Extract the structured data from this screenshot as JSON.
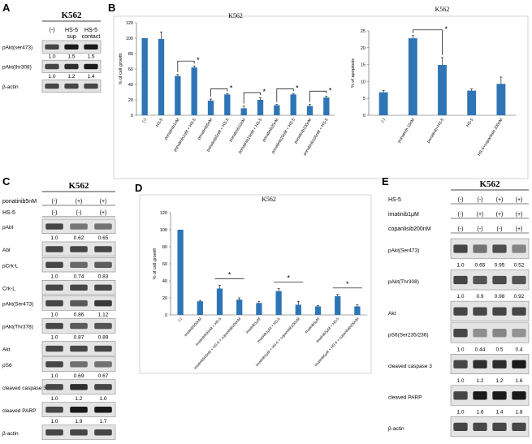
{
  "panels": {
    "A": {
      "letter": "A",
      "cell": "K562",
      "lanes": [
        "(-)",
        "HS-5\nsup",
        "HS-5\ncontact"
      ],
      "blots": [
        {
          "label": "pAkt(ser473)",
          "values": [
            "1.0",
            "1.5",
            "1.5"
          ]
        },
        {
          "label": "pAkt(thr308)",
          "values": [
            "1.0",
            "1.2",
            "1.4"
          ]
        },
        {
          "label": "β-actin",
          "values": []
        }
      ]
    },
    "B": {
      "letter": "B",
      "left": {
        "title": "K562",
        "ylabel": "% of cell growth",
        "ylim": [
          0,
          120
        ],
        "yticks": [
          "0",
          "20",
          "40",
          "60",
          "80",
          "100",
          "120"
        ],
        "categories": [
          "(-)",
          "HS-5",
          "ponatinib1nM",
          "ponatinib1nM + HS-5",
          "ponatinib5nM",
          "ponatinib5nM + HS-5",
          "ponatinib10nM",
          "ponatinib10nM + HS-5",
          "ponatinib20nM",
          "ponatinib20nM + HS-5",
          "ponatinib100nM",
          "ponatinib100nM + HS-5"
        ],
        "values": [
          100,
          99,
          51,
          62,
          19,
          27,
          9,
          20,
          13,
          27,
          12,
          23
        ],
        "errors": [
          0,
          9,
          2,
          2,
          2,
          1,
          3,
          3,
          1,
          1,
          2,
          2
        ],
        "sig": [
          {
            "a": 2,
            "b": 3
          },
          {
            "a": 4,
            "b": 5
          },
          {
            "a": 6,
            "b": 7
          },
          {
            "a": 8,
            "b": 9
          },
          {
            "a": 10,
            "b": 11
          }
        ],
        "star": "*"
      },
      "right": {
        "title": "K562",
        "ylabel": "% of apoptosis",
        "ylim": [
          0,
          25
        ],
        "yticks": [
          "0",
          "5",
          "10",
          "15",
          "20",
          "25"
        ],
        "categories": [
          "(-)",
          "ponatinib 10nM",
          "ponatinib+HS-5",
          "HS-5",
          "HS-5+copanlisib 200nM"
        ],
        "values": [
          6.8,
          22.8,
          14.9,
          7.3,
          9.3
        ],
        "errors": [
          0.6,
          0.8,
          2.2,
          0.5,
          2.0
        ],
        "sig": [
          {
            "a": 1,
            "b": 2
          }
        ],
        "star": "*"
      }
    },
    "C": {
      "letter": "C",
      "cell": "K562",
      "treat_labels": [
        "ponatinib5nM",
        "HS-5"
      ],
      "treat_values": [
        [
          "(-)",
          "(+)",
          "(+)"
        ],
        [
          "(-)",
          "(-)",
          "(+)"
        ]
      ],
      "blots": [
        {
          "label": "pAbl",
          "values": [
            "1.0",
            "0.62",
            "0.65"
          ]
        },
        {
          "label": "Abl",
          "values": []
        },
        {
          "label": "pCrk-L",
          "values": [
            "1.0",
            "0.74",
            "0.83"
          ]
        },
        {
          "label": "Crk-L",
          "values": []
        },
        {
          "label": "pAkt(Ser473)",
          "values": [
            "1.0",
            "0.86",
            "1.12"
          ]
        },
        {
          "label": "pAkt(Thr378)",
          "values": [
            "1.0",
            "0.87",
            "0.89"
          ]
        },
        {
          "label": "Akt",
          "values": []
        },
        {
          "label": "pS6",
          "values": [
            "1.0",
            "0.69",
            "0.67"
          ]
        },
        {
          "label": "cleaved caspase 3",
          "values": [
            "1.0",
            "1.2",
            "1.0"
          ]
        },
        {
          "label": "cleaved PARP",
          "values": [
            "1.0",
            "1.9",
            "1.7"
          ]
        },
        {
          "label": "β-actin",
          "values": []
        }
      ]
    },
    "D": {
      "letter": "D",
      "title": "K562",
      "ylabel": "% of cell growth",
      "ylim": [
        0,
        120
      ],
      "yticks": [
        "0",
        "20",
        "40",
        "60",
        "80",
        "100",
        "120"
      ],
      "categories": [
        "(-)",
        "imatinib500nM",
        "imatinib500nM + HS-5",
        "imatinib500nM + HS-5 + copanlisib200nM",
        "imatinib1μM",
        "imatinib1μM + HS-5",
        "imatinib1μM + HS-5 + copanlisib200nM",
        "imatinib5μM",
        "imatinib5μM + HS-5",
        "imatinib5μM + HS-5 + copanlisib200nM"
      ],
      "values": [
        100,
        16,
        31,
        18,
        14,
        28,
        12,
        10,
        22,
        10
      ],
      "errors": [
        0,
        1,
        4,
        2,
        2,
        3,
        4,
        1,
        2,
        2
      ],
      "sig": [
        {
          "a": 2,
          "b": 3
        },
        {
          "a": 5,
          "b": 6
        },
        {
          "a": 8,
          "b": 9
        }
      ],
      "star": "*"
    },
    "E": {
      "letter": "E",
      "cell": "K562",
      "treat_labels": [
        "HS-5",
        "imatinib1μM",
        "copanlisib200nM"
      ],
      "treat_values": [
        [
          "(-)",
          "(-)",
          "(+)",
          "(+)"
        ],
        [
          "(-)",
          "(+)",
          "(+)",
          "(+)"
        ],
        [
          "(-)",
          "(-)",
          "(-)",
          "(+)"
        ]
      ],
      "blots": [
        {
          "label": "pAkt(Ser473)",
          "values": [
            "1.0",
            "0.65",
            "0.95",
            "0.52"
          ]
        },
        {
          "label": "pAkt(Thr308)",
          "values": [
            "1.0",
            "0.9",
            "0.98",
            "0.92"
          ]
        },
        {
          "label": "Akt",
          "values": []
        },
        {
          "label": "pS6(Ser235/236)",
          "values": [
            "1.0",
            "0.44",
            "0.5",
            "0.4"
          ]
        },
        {
          "label": "cleaved caspase 3",
          "values": [
            "1.0",
            "1.2",
            "1.2",
            "1.6"
          ]
        },
        {
          "label": "cleaved PARP",
          "values": [
            "1.0",
            "1.6",
            "1.4",
            "1.8"
          ]
        },
        {
          "label": "β-actin",
          "values": []
        }
      ]
    }
  },
  "colors": {
    "bar": "#2e75b6",
    "band": "#1a1a1a",
    "blot_bg": "#e4e4e4"
  }
}
